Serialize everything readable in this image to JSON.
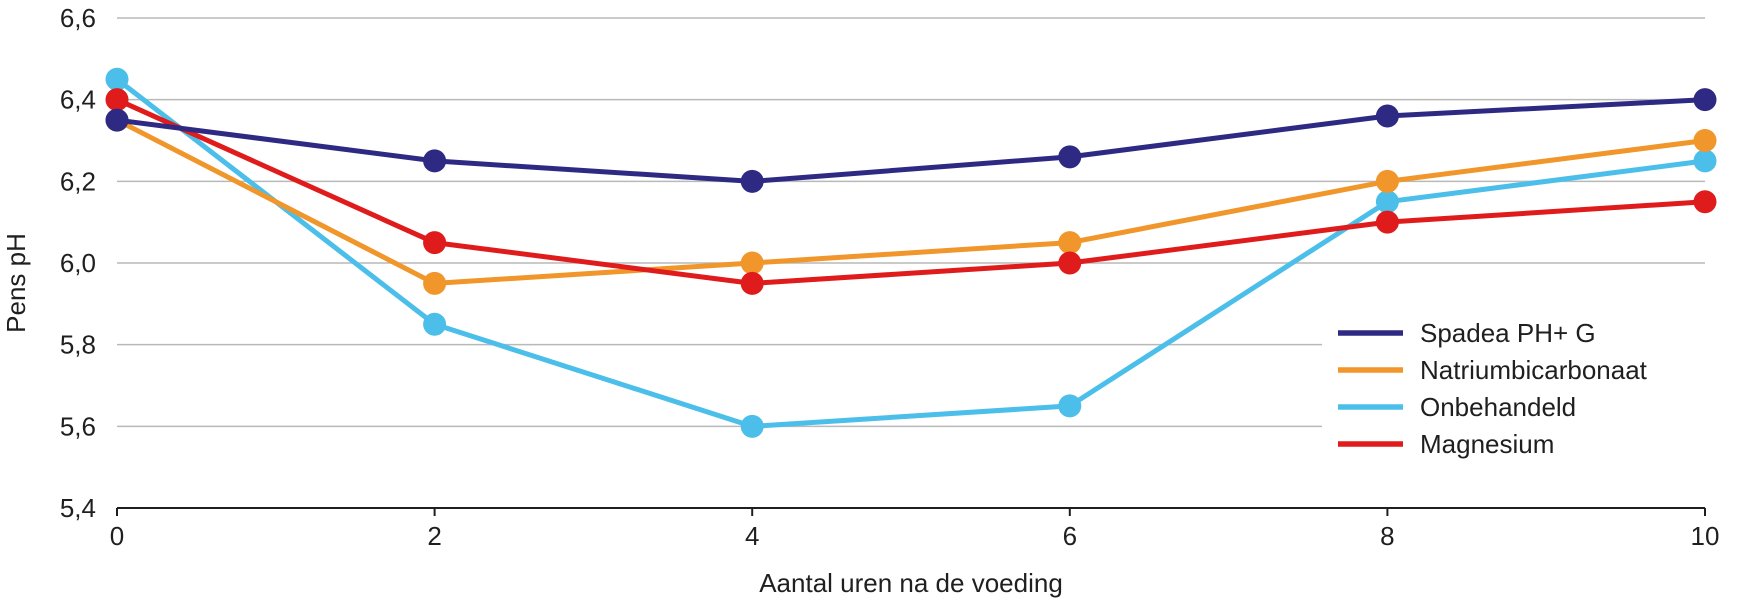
{
  "chart_data": {
    "type": "line",
    "title": "",
    "xlabel": "Aantal uren na de voeding",
    "ylabel": "Pens pH",
    "x": [
      0,
      2,
      4,
      6,
      8,
      10
    ],
    "x_tick_labels": [
      "0",
      "2",
      "4",
      "6",
      "8",
      "10"
    ],
    "ylim": [
      5.4,
      6.6
    ],
    "y_ticks": [
      5.4,
      5.6,
      5.8,
      6.0,
      6.2,
      6.4,
      6.6
    ],
    "y_tick_labels": [
      "5,4",
      "5,6",
      "5,8",
      "6,0",
      "6,2",
      "6,4",
      "6,6"
    ],
    "grid": true,
    "legend_position": "right",
    "series": [
      {
        "name": "Spadea PH+ G",
        "color": "#2e2a83",
        "values": [
          6.35,
          6.25,
          6.2,
          6.26,
          6.36,
          6.4
        ]
      },
      {
        "name": "Natriumbicarbonaat",
        "color": "#f0962a",
        "values": [
          6.35,
          5.95,
          6.0,
          6.05,
          6.2,
          6.3
        ]
      },
      {
        "name": "Onbehandeld",
        "color": "#4bbfea",
        "values": [
          6.45,
          5.85,
          5.6,
          5.65,
          6.15,
          6.25
        ]
      },
      {
        "name": "Magnesium",
        "color": "#e01b1b",
        "values": [
          6.4,
          6.05,
          5.95,
          6.0,
          6.1,
          6.15
        ]
      }
    ]
  }
}
